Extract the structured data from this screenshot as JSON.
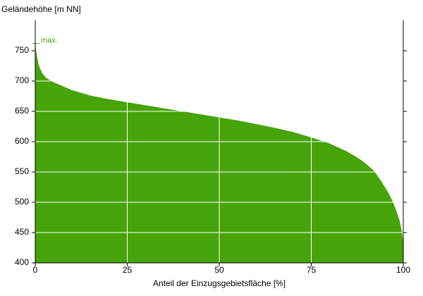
{
  "chart_data": {
    "type": "area",
    "y_label": "Geländehöhe [m NN]",
    "x_label": "Anteil der Einzugsgebietsfläche [%]",
    "annotation": {
      "text": "max.",
      "value": 762
    },
    "color": "#46a408",
    "grid": true,
    "x": [
      0,
      0.5,
      1,
      2,
      3,
      5,
      10,
      15,
      20,
      25,
      30,
      35,
      40,
      45,
      50,
      55,
      60,
      65,
      70,
      75,
      80,
      85,
      88,
      90,
      92,
      94,
      96,
      97,
      98,
      99,
      99.5,
      100
    ],
    "values": [
      762,
      740,
      725,
      712,
      705,
      698,
      685,
      676,
      670,
      665,
      660,
      655,
      650,
      645,
      640,
      635,
      629,
      623,
      616,
      607,
      597,
      583,
      572,
      563,
      552,
      535,
      515,
      503,
      488,
      470,
      455,
      435
    ],
    "xlim": [
      0,
      100
    ],
    "xticks": [
      0,
      25,
      50,
      75,
      100
    ],
    "ylim": [
      400,
      800
    ],
    "yticks": [
      400,
      450,
      500,
      550,
      600,
      650,
      700,
      750
    ]
  }
}
